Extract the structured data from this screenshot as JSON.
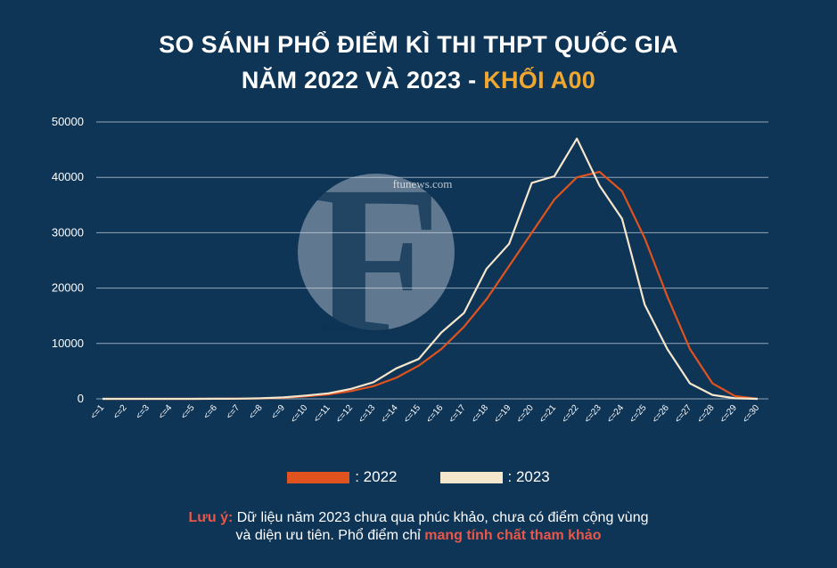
{
  "colors": {
    "background": "#0e3456",
    "accent": "#f0a730",
    "series_2022": "#e0531e",
    "series_2023": "#f5e6cc",
    "grid": "#cfd8e3",
    "note_highlight": "#e8574a"
  },
  "header": {
    "line1": "SO SÁNH PHỔ ĐIỂM KÌ THI THPT QUỐC GIA",
    "line2_prefix": "NĂM 2022 VÀ 2023 - ",
    "line2_accent": "KHỐI A00"
  },
  "watermark": {
    "letter": "F",
    "text": "ftunews.com"
  },
  "legend": {
    "item_2022": ": 2022",
    "item_2023": ": 2023"
  },
  "note": {
    "label": "Lưu ý:",
    "text1": " Dữ liệu năm 2023 chưa qua phúc khảo, chưa có điểm cộng vùng",
    "text2": "và diện ưu tiên. Phổ điểm chỉ ",
    "emphasis": "mang tính chất tham khảo"
  },
  "chart_data": {
    "type": "line",
    "title": "SO SÁNH PHỔ ĐIỂM KÌ THI THPT QUỐC GIA NĂM 2022 VÀ 2023 - KHỐI A00",
    "categories": [
      "<=1",
      "<=2",
      "<=3",
      "<=4",
      "<=5",
      "<=6",
      "<=7",
      "<=8",
      "<=9",
      "<=10",
      "<=11",
      "<=12",
      "<=13",
      "<=14",
      "<=15",
      "<=16",
      "<=17",
      "<=18",
      "<=19",
      "<=20",
      "<=21",
      "<=22",
      "<=23",
      "<=24",
      "<=25",
      "<=26",
      "<=27",
      "<=28",
      "<=29",
      "<=30"
    ],
    "ylim": [
      0,
      50000
    ],
    "yticks": [
      0,
      10000,
      20000,
      30000,
      40000,
      50000
    ],
    "grid": true,
    "legend_position": "bottom",
    "series": [
      {
        "name": "2022",
        "color": "#e0531e",
        "values": [
          0,
          0,
          0,
          0,
          0,
          10,
          30,
          80,
          200,
          450,
          800,
          1400,
          2300,
          3800,
          6000,
          9000,
          13000,
          18000,
          24000,
          30000,
          36000,
          40000,
          41000,
          37500,
          29000,
          18500,
          9000,
          2800,
          500,
          0
        ]
      },
      {
        "name": "2023",
        "color": "#f5e6cc",
        "values": [
          0,
          0,
          0,
          0,
          0,
          10,
          30,
          100,
          250,
          600,
          1000,
          1800,
          3000,
          5500,
          7200,
          12000,
          15500,
          23500,
          28000,
          39000,
          40200,
          47000,
          38500,
          32500,
          17000,
          9000,
          2800,
          700,
          100,
          0
        ]
      }
    ]
  }
}
